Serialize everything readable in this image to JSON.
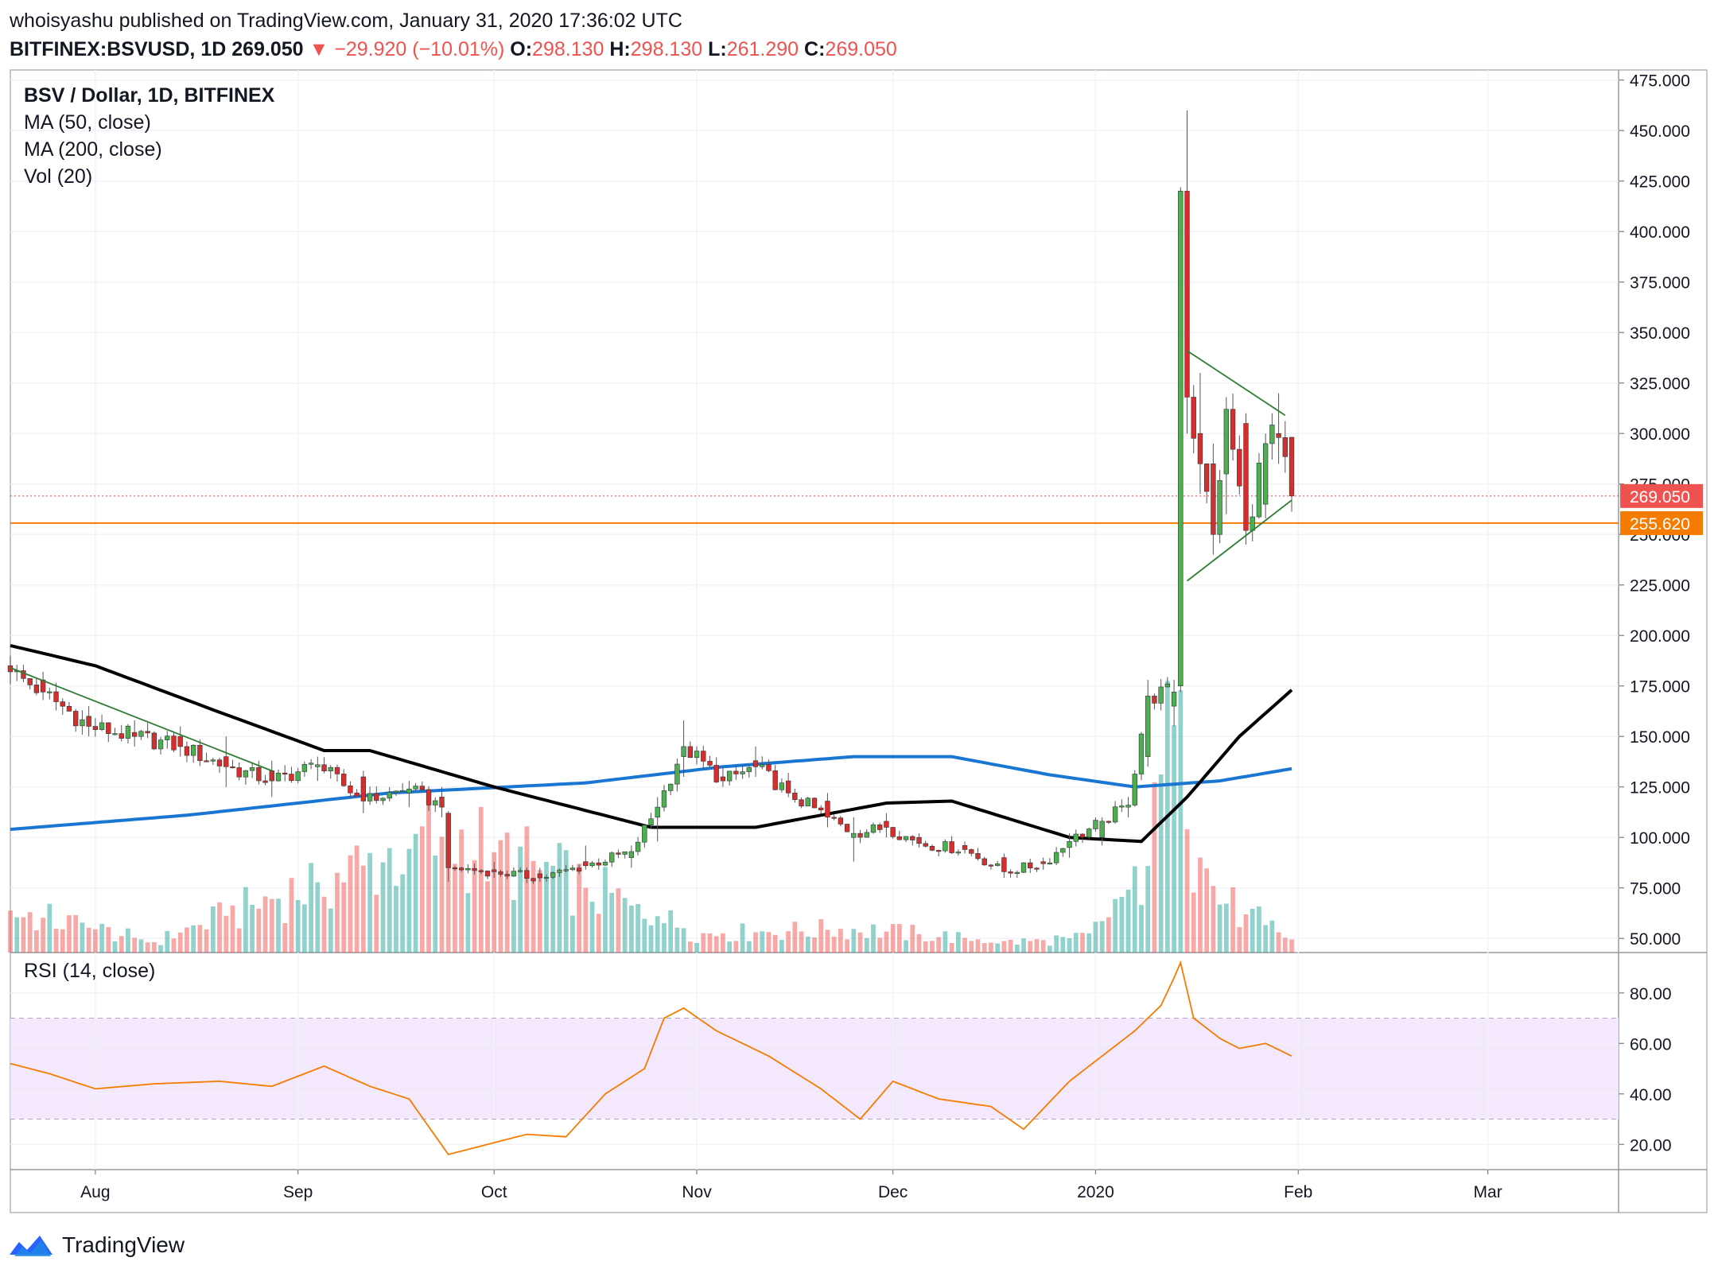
{
  "header": {
    "line1": "whoisyashu published on TradingView.com, January 31, 2020 17:36:02 UTC",
    "symbol": "BITFINEX:BSVUSD, 1D",
    "last": "269.050",
    "change_arrow": "▼",
    "change": "−29.920 (−10.01%)",
    "o_label": "O:",
    "o": "298.130",
    "h_label": "H:",
    "h": "298.130",
    "l_label": "L:",
    "l": "261.290",
    "c_label": "C:",
    "c": "269.050"
  },
  "legend": {
    "title": "BSV / Dollar, 1D, BITFINEX",
    "ma50": "MA (50, close)",
    "ma200": "MA (200, close)",
    "vol": "Vol (20)",
    "rsi": "RSI (14, close)"
  },
  "footer": {
    "brand": "TradingView",
    "logo_icon": "tradingview-logo-icon"
  },
  "colors": {
    "up": "#26a69a",
    "down": "#ef5350",
    "candle_up_body": "#4caf50",
    "candle_down_body": "#d32f2f",
    "ma50": "#000000",
    "ma200": "#1976d2",
    "rsi": "#f57c00",
    "rsi_band": "#f3e5fc",
    "trendline": "#2e7d32",
    "support": "#f57c00"
  },
  "chart_data": [
    {
      "type": "candlestick",
      "title": "BSV / Dollar, 1D, BITFINEX",
      "x_tick_labels": [
        "Aug",
        "Sep",
        "Oct",
        "Nov",
        "Dec",
        "2020",
        "Feb",
        "Mar"
      ],
      "x_range": [
        "2019-07-19",
        "2020-03-21"
      ],
      "y_range": [
        43,
        480
      ],
      "y_tick_labels": [
        "50.000",
        "75.000",
        "100.000",
        "125.000",
        "150.000",
        "175.000",
        "200.000",
        "225.000",
        "250.000",
        "275.000",
        "300.000",
        "325.000",
        "350.000",
        "375.000",
        "400.000",
        "425.000",
        "450.000",
        "475.000"
      ],
      "y_ticks": [
        50,
        75,
        100,
        125,
        150,
        175,
        200,
        225,
        250,
        275,
        300,
        325,
        350,
        375,
        400,
        425,
        450,
        475
      ],
      "price_markers": [
        {
          "value": 269.05,
          "label": "269.050",
          "color": "#ef5350",
          "style": "dotted"
        },
        {
          "value": 255.62,
          "label": "255.620",
          "color": "#f57c00",
          "style": "solid"
        }
      ],
      "ohlc_anchors": [
        [
          "2019-07-19",
          185,
          190,
          176,
          182
        ],
        [
          "2019-07-24",
          178,
          182,
          168,
          172
        ],
        [
          "2019-07-31",
          160,
          165,
          150,
          155
        ],
        [
          "2019-08-07",
          152,
          158,
          145,
          150
        ],
        [
          "2019-08-14",
          150,
          155,
          140,
          145
        ],
        [
          "2019-08-21",
          140,
          150,
          125,
          135
        ],
        [
          "2019-08-28",
          133,
          138,
          120,
          128
        ],
        [
          "2019-09-04",
          135,
          140,
          128,
          136
        ],
        [
          "2019-09-11",
          130,
          133,
          112,
          118
        ],
        [
          "2019-09-18",
          122,
          128,
          115,
          124
        ],
        [
          "2019-09-23",
          120,
          125,
          110,
          115
        ],
        [
          "2019-09-24",
          112,
          113,
          78,
          85
        ],
        [
          "2019-10-01",
          84,
          88,
          80,
          83
        ],
        [
          "2019-10-08",
          82,
          85,
          78,
          80
        ],
        [
          "2019-10-15",
          88,
          96,
          84,
          86
        ],
        [
          "2019-10-22",
          90,
          96,
          85,
          93
        ],
        [
          "2019-10-26",
          110,
          120,
          98,
          115
        ],
        [
          "2019-10-30",
          140,
          158,
          130,
          145
        ],
        [
          "2019-11-05",
          130,
          135,
          125,
          128
        ],
        [
          "2019-11-10",
          138,
          145,
          130,
          135
        ],
        [
          "2019-11-15",
          128,
          132,
          120,
          122
        ],
        [
          "2019-11-21",
          118,
          122,
          105,
          110
        ],
        [
          "2019-11-25",
          100,
          110,
          88,
          102
        ],
        [
          "2019-11-30",
          108,
          112,
          100,
          105
        ],
        [
          "2019-12-05",
          100,
          102,
          95,
          97
        ],
        [
          "2019-12-12",
          96,
          98,
          92,
          94
        ],
        [
          "2019-12-18",
          90,
          92,
          80,
          83
        ],
        [
          "2019-12-24",
          88,
          90,
          84,
          87
        ],
        [
          "2019-12-28",
          95,
          102,
          90,
          98
        ],
        [
          "2020-01-02",
          100,
          110,
          96,
          108
        ],
        [
          "2020-01-06",
          115,
          120,
          110,
          116
        ],
        [
          "2020-01-09",
          140,
          178,
          135,
          170
        ],
        [
          "2020-01-13",
          165,
          178,
          155,
          172
        ],
        [
          "2020-01-14",
          175,
          422,
          172,
          420
        ],
        [
          "2020-01-15",
          420,
          460,
          300,
          318
        ],
        [
          "2020-01-17",
          300,
          330,
          270,
          285
        ],
        [
          "2020-01-19",
          285,
          295,
          240,
          250
        ],
        [
          "2020-01-21",
          280,
          318,
          260,
          312
        ],
        [
          "2020-01-24",
          305,
          310,
          245,
          252
        ],
        [
          "2020-01-27",
          265,
          300,
          258,
          295
        ],
        [
          "2020-01-29",
          300,
          320,
          285,
          298
        ],
        [
          "2020-01-31",
          298.13,
          298.13,
          261.29,
          269.05
        ]
      ],
      "ma50_anchors": [
        [
          "2019-07-19",
          195
        ],
        [
          "2019-08-01",
          185
        ],
        [
          "2019-08-20",
          162
        ],
        [
          "2019-09-05",
          143
        ],
        [
          "2019-09-12",
          143
        ],
        [
          "2019-10-01",
          125
        ],
        [
          "2019-10-25",
          105
        ],
        [
          "2019-11-10",
          105
        ],
        [
          "2019-11-30",
          117
        ],
        [
          "2019-12-10",
          118
        ],
        [
          "2019-12-28",
          100
        ],
        [
          "2020-01-08",
          98
        ],
        [
          "2020-01-15",
          120
        ],
        [
          "2020-01-23",
          150
        ],
        [
          "2020-01-31",
          173
        ]
      ],
      "ma200_anchors": [
        [
          "2019-07-19",
          104
        ],
        [
          "2019-08-15",
          111
        ],
        [
          "2019-09-15",
          122
        ],
        [
          "2019-10-15",
          127
        ],
        [
          "2019-11-05",
          135
        ],
        [
          "2019-11-25",
          140
        ],
        [
          "2019-12-10",
          140
        ],
        [
          "2019-12-25",
          131
        ],
        [
          "2020-01-07",
          125
        ],
        [
          "2020-01-20",
          128
        ],
        [
          "2020-01-31",
          134
        ]
      ],
      "trendlines": [
        [
          [
            "2019-07-19",
            184
          ],
          [
            "2019-08-28",
            133
          ]
        ],
        [
          [
            "2020-01-15",
            341
          ],
          [
            "2020-01-30",
            309
          ]
        ],
        [
          [
            "2020-01-15",
            227
          ],
          [
            "2020-01-31",
            267
          ]
        ]
      ],
      "volume_anchors": [
        [
          "2019-07-19",
          0.16
        ],
        [
          "2019-08-10",
          0.04
        ],
        [
          "2019-09-24",
          0.45
        ],
        [
          "2019-10-25",
          0.15
        ],
        [
          "2019-11-01",
          0.07
        ],
        [
          "2019-11-25",
          0.09
        ],
        [
          "2019-12-20",
          0.04
        ],
        [
          "2019-12-31",
          0.06
        ],
        [
          "2020-01-09",
          0.33
        ],
        [
          "2020-01-14",
          1.0
        ],
        [
          "2020-01-15",
          0.47
        ],
        [
          "2020-01-20",
          0.2
        ],
        [
          "2020-01-31",
          0.05
        ]
      ]
    },
    {
      "type": "line",
      "title": "RSI (14, close)",
      "y_range": [
        10,
        96
      ],
      "y_tick_labels": [
        "20.00",
        "40.00",
        "60.00",
        "80.00"
      ],
      "y_ticks": [
        20,
        40,
        60,
        80
      ],
      "band": [
        30,
        70
      ],
      "rsi_anchors": [
        [
          "2019-07-19",
          52
        ],
        [
          "2019-07-25",
          48
        ],
        [
          "2019-08-01",
          42
        ],
        [
          "2019-08-10",
          44
        ],
        [
          "2019-08-20",
          45
        ],
        [
          "2019-08-28",
          43
        ],
        [
          "2019-09-05",
          51
        ],
        [
          "2019-09-12",
          43
        ],
        [
          "2019-09-18",
          38
        ],
        [
          "2019-09-24",
          16
        ],
        [
          "2019-09-30",
          20
        ],
        [
          "2019-10-06",
          24
        ],
        [
          "2019-10-12",
          23
        ],
        [
          "2019-10-18",
          40
        ],
        [
          "2019-10-24",
          50
        ],
        [
          "2019-10-27",
          70
        ],
        [
          "2019-10-30",
          74
        ],
        [
          "2019-11-04",
          65
        ],
        [
          "2019-11-12",
          55
        ],
        [
          "2019-11-20",
          42
        ],
        [
          "2019-11-26",
          30
        ],
        [
          "2019-12-01",
          45
        ],
        [
          "2019-12-08",
          38
        ],
        [
          "2019-12-16",
          35
        ],
        [
          "2019-12-21",
          26
        ],
        [
          "2019-12-28",
          45
        ],
        [
          "2020-01-02",
          55
        ],
        [
          "2020-01-07",
          65
        ],
        [
          "2020-01-11",
          75
        ],
        [
          "2020-01-13",
          86
        ],
        [
          "2020-01-14",
          92
        ],
        [
          "2020-01-16",
          70
        ],
        [
          "2020-01-20",
          62
        ],
        [
          "2020-01-23",
          58
        ],
        [
          "2020-01-27",
          60
        ],
        [
          "2020-01-31",
          55
        ]
      ]
    }
  ]
}
